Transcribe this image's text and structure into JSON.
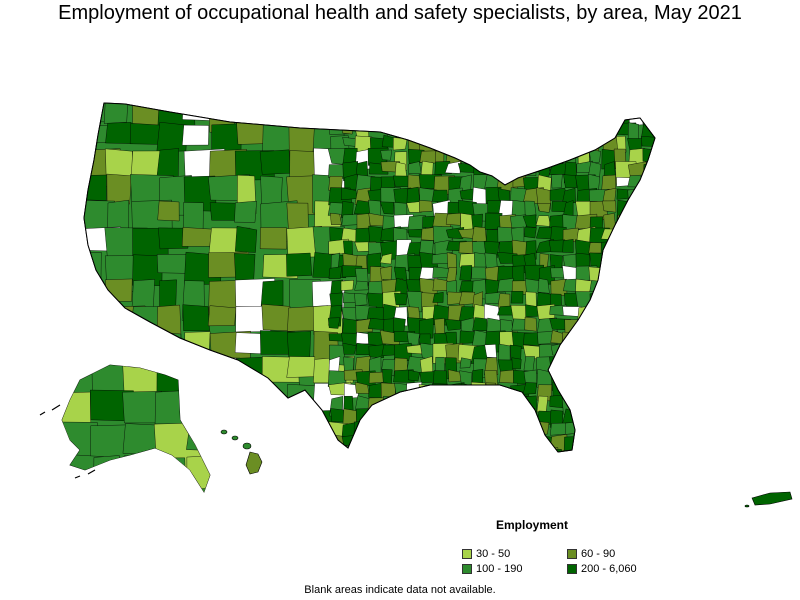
{
  "title": "Employment of occupational health and safety specialists, by area, May 2021",
  "legend": {
    "title": "Employment",
    "items": [
      {
        "label": "30 - 50",
        "color": "#a8d34a"
      },
      {
        "label": "60 - 90",
        "color": "#6b8e23"
      },
      {
        "label": "100 - 190",
        "color": "#2e8b2e"
      },
      {
        "label": "200 - 6,060",
        "color": "#006400"
      }
    ]
  },
  "note": "Blank areas indicate data not available.",
  "colors": {
    "level1": "#a8d34a",
    "level2": "#6b8e23",
    "level3": "#2e8b2e",
    "level4": "#006400",
    "blank": "#ffffff",
    "border": "#000000"
  }
}
